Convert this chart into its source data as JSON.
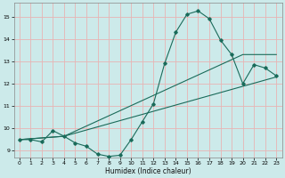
{
  "xlabel": "Humidex (Indice chaleur)",
  "bg_color": "#cceaea",
  "grid_color": "#e8b4b4",
  "line_color": "#1a6b5a",
  "xlim": [
    -0.5,
    23.5
  ],
  "ylim": [
    8.7,
    15.6
  ],
  "xticks": [
    0,
    1,
    2,
    3,
    4,
    5,
    6,
    7,
    8,
    9,
    10,
    11,
    12,
    13,
    14,
    15,
    16,
    17,
    18,
    19,
    20,
    21,
    22,
    23
  ],
  "yticks": [
    9,
    10,
    11,
    12,
    13,
    14,
    15
  ],
  "curve1_x": [
    0,
    1,
    2,
    3,
    4,
    5,
    6,
    7,
    8,
    9,
    10,
    11,
    12,
    13,
    14,
    15,
    16,
    17,
    18,
    19,
    20,
    21,
    22,
    23
  ],
  "curve1_y": [
    9.5,
    9.5,
    9.4,
    9.9,
    9.65,
    9.35,
    9.2,
    8.85,
    8.75,
    8.8,
    9.5,
    10.3,
    11.1,
    12.9,
    14.3,
    15.1,
    15.25,
    14.9,
    13.95,
    13.3,
    12.0,
    12.85,
    12.7,
    12.35
  ],
  "curve2_x": [
    0,
    4,
    20,
    23
  ],
  "curve2_y": [
    9.5,
    9.65,
    13.3,
    13.3
  ],
  "curve3_x": [
    0,
    4,
    23
  ],
  "curve3_y": [
    9.5,
    9.65,
    12.3
  ]
}
